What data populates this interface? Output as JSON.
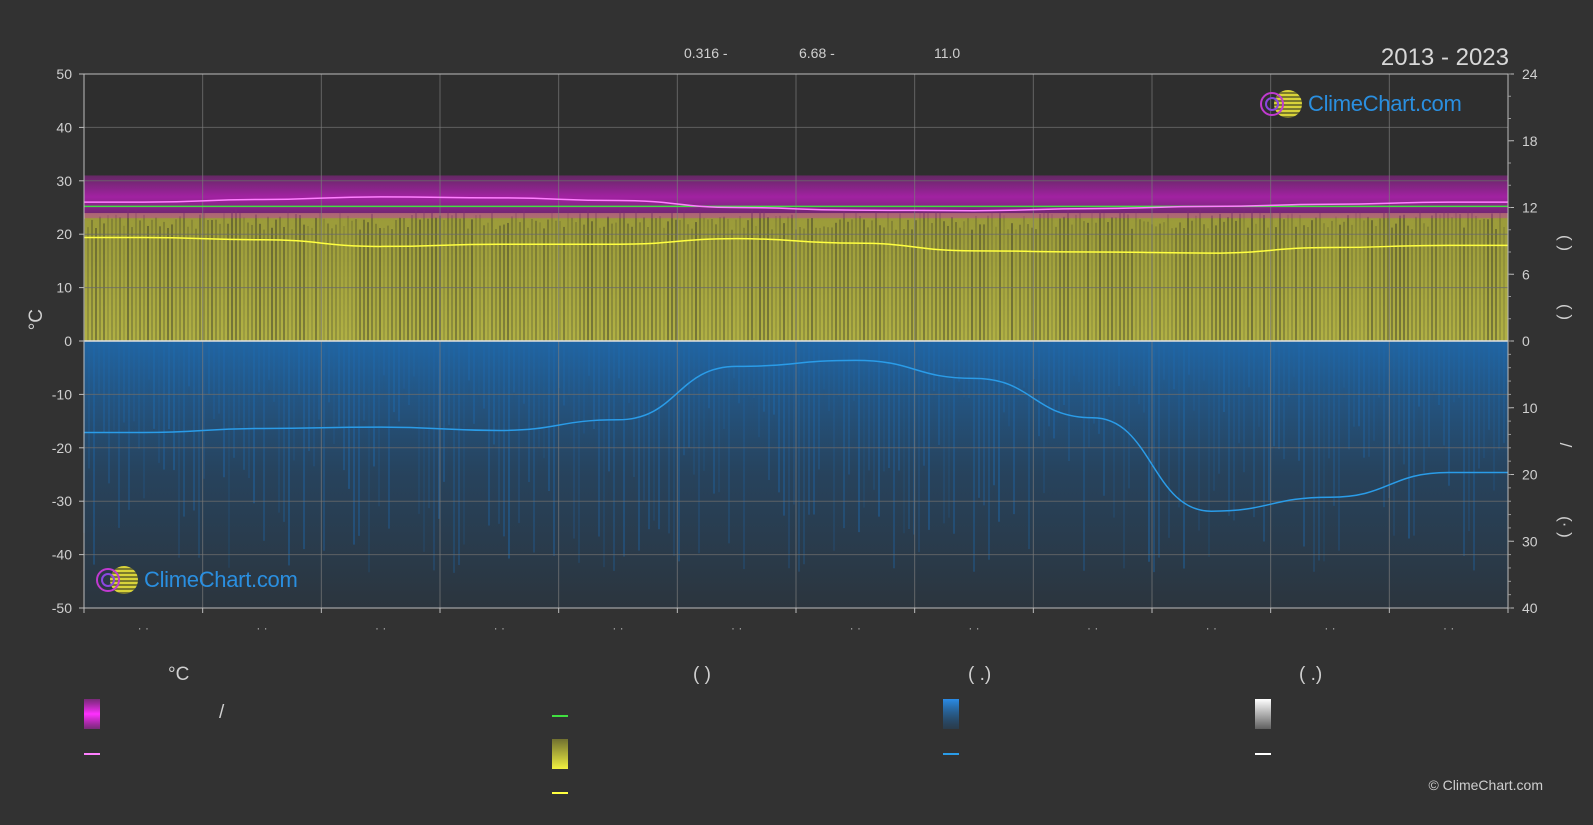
{
  "header": {
    "values": [
      "0.316 -",
      "6.68 -",
      "11.0"
    ],
    "period": "2013 - 2023"
  },
  "brand": {
    "logo_text": "ClimeChart.com",
    "copyright": "© ClimeChart.com"
  },
  "legend": {
    "col1_heading": "°C",
    "col2_heading": "(          )",
    "col3_heading": "(   .)",
    "col4_heading": "(   .)",
    "slash": "/"
  },
  "colors": {
    "background": "#323232",
    "max_temp_band": "#c81ec8",
    "sunshine_band": "#c8c83c",
    "precip_band": "#1e78c8",
    "temp_line": "#ff80ff",
    "sunshine_line": "#ffff40",
    "daylight_line": "#40e040",
    "precip_line": "#2a9ce8",
    "snow_line": "#ffffff"
  },
  "chart_data": {
    "type": "area",
    "period": "2013 - 2023",
    "x_categories": 12,
    "left_axis": {
      "ylabel": "°C",
      "ylim": [
        -50,
        50
      ],
      "ticks": [
        50,
        40,
        30,
        20,
        10,
        0,
        -10,
        -20,
        -30,
        -40,
        -50
      ]
    },
    "right_axis_top": {
      "ylim": [
        0,
        24
      ],
      "ticks": [
        24,
        18,
        12,
        6,
        0
      ]
    },
    "right_axis_bottom": {
      "ylim": [
        0,
        40
      ],
      "ticks": [
        0,
        10,
        20,
        30,
        40
      ]
    },
    "right_labels": [
      "(   )",
      "(   )",
      "/",
      "(·   )"
    ],
    "series": [
      {
        "name": "",
        "key": "temp_mean",
        "unit": "°C",
        "values": [
          26.0,
          26.5,
          27.0,
          26.8,
          26.3,
          25.0,
          24.5,
          24.4,
          24.8,
          25.2,
          25.6,
          26.0
        ]
      },
      {
        "name": "",
        "key": "daylight",
        "unit": "h",
        "values": [
          12.1,
          12.1,
          12.1,
          12.1,
          12.1,
          12.1,
          12.1,
          12.1,
          12.1,
          12.1,
          12.1,
          12.1
        ]
      },
      {
        "name": "",
        "key": "sunshine",
        "unit": "h",
        "values": [
          9.3,
          9.1,
          8.5,
          8.7,
          8.7,
          9.2,
          8.8,
          8.1,
          8.0,
          7.9,
          8.4,
          8.6
        ]
      },
      {
        "name": "",
        "key": "precip",
        "unit": "mm",
        "values": [
          13.7,
          13.1,
          12.9,
          13.4,
          11.8,
          3.8,
          2.9,
          5.6,
          11.5,
          25.5,
          23.4,
          19.7
        ]
      }
    ]
  }
}
